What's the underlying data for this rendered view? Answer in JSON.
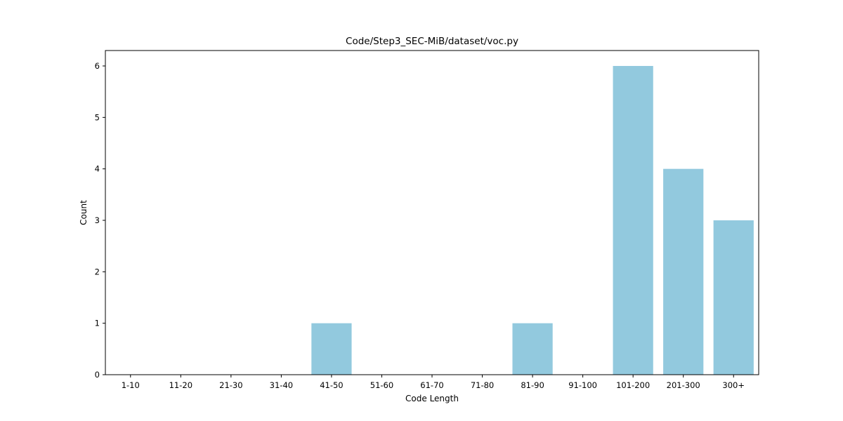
{
  "chart_data": {
    "type": "bar",
    "title": "Code/Step3_SEC-MiB/dataset/voc.py",
    "xlabel": "Code Length",
    "ylabel": "Count",
    "categories": [
      "1-10",
      "11-20",
      "21-30",
      "31-40",
      "41-50",
      "51-60",
      "61-70",
      "71-80",
      "81-90",
      "91-100",
      "101-200",
      "201-300",
      "300+"
    ],
    "values": [
      0,
      0,
      0,
      0,
      1,
      0,
      0,
      0,
      1,
      0,
      6,
      4,
      3
    ],
    "ylim": [
      0,
      6.3
    ],
    "yticks": [
      "0",
      "1",
      "2",
      "3",
      "4",
      "5",
      "6"
    ],
    "bar_color": "#92c9de",
    "grid": false
  }
}
